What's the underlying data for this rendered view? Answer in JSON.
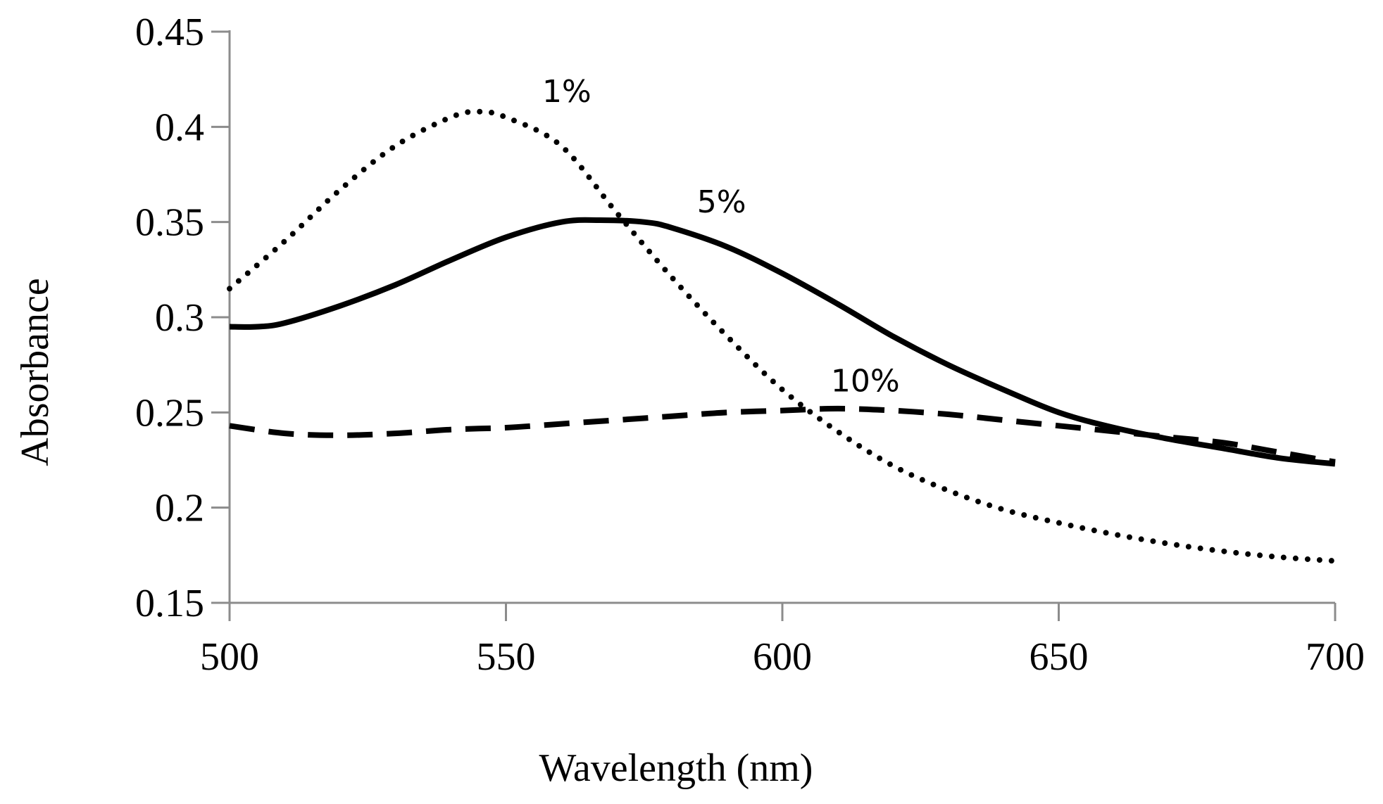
{
  "chart_data": {
    "type": "line",
    "title": "",
    "xlabel": "Wavelength (nm)",
    "ylabel": "Absorbance",
    "xlim": [
      500,
      700
    ],
    "ylim": [
      0.15,
      0.45
    ],
    "xticks": [
      500,
      550,
      600,
      650,
      700
    ],
    "xtick_labels": [
      "500",
      "550",
      "600",
      "650",
      "700"
    ],
    "yticks": [
      0.15,
      0.2,
      0.25,
      0.3,
      0.35,
      0.4,
      0.45
    ],
    "ytick_labels": [
      "0.15",
      "0.2",
      "0.25",
      "0.3",
      "0.35",
      "0.4",
      "0.45"
    ],
    "grid": false,
    "legend": "none",
    "series": [
      {
        "name": "1%",
        "style": "dotted",
        "label_at": [
          561,
          0.413
        ],
        "x": [
          500,
          510,
          520,
          530,
          540,
          545,
          550,
          560,
          570,
          580,
          590,
          600,
          610,
          620,
          630,
          640,
          650,
          660,
          670,
          680,
          690,
          700
        ],
        "y": [
          0.315,
          0.34,
          0.367,
          0.39,
          0.405,
          0.408,
          0.405,
          0.39,
          0.355,
          0.321,
          0.29,
          0.262,
          0.24,
          0.222,
          0.209,
          0.199,
          0.192,
          0.186,
          0.181,
          0.177,
          0.174,
          0.172
        ]
      },
      {
        "name": "5%",
        "style": "solid",
        "label_at": [
          589,
          0.355
        ],
        "x": [
          500,
          505,
          510,
          520,
          530,
          540,
          550,
          560,
          567,
          575,
          580,
          590,
          600,
          610,
          620,
          630,
          640,
          650,
          660,
          670,
          680,
          690,
          700
        ],
        "y": [
          0.295,
          0.295,
          0.297,
          0.306,
          0.317,
          0.33,
          0.342,
          0.35,
          0.351,
          0.35,
          0.347,
          0.337,
          0.323,
          0.307,
          0.29,
          0.275,
          0.262,
          0.25,
          0.242,
          0.236,
          0.231,
          0.226,
          0.223
        ]
      },
      {
        "name": "10%",
        "style": "dashed",
        "label_at": [
          615,
          0.261
        ],
        "x": [
          500,
          510,
          520,
          530,
          540,
          550,
          560,
          570,
          580,
          590,
          600,
          610,
          620,
          630,
          640,
          650,
          660,
          670,
          680,
          690,
          700
        ],
        "y": [
          0.243,
          0.239,
          0.238,
          0.239,
          0.241,
          0.242,
          0.244,
          0.246,
          0.248,
          0.25,
          0.251,
          0.252,
          0.251,
          0.249,
          0.246,
          0.243,
          0.24,
          0.237,
          0.234,
          0.229,
          0.224
        ]
      }
    ]
  },
  "colors": {
    "axis": "#8c8c8c",
    "series": "#000000",
    "background": "#ffffff"
  }
}
